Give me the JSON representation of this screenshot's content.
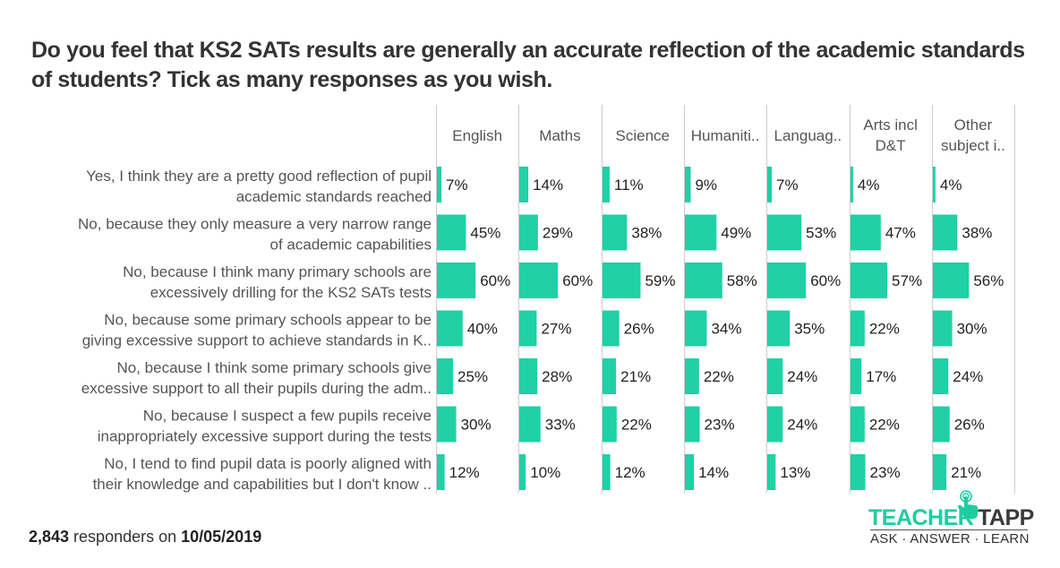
{
  "title": "Do you feel that KS2 SATs results are generally an accurate reflection of the academic standards of students? Tick as many responses as you wish.",
  "footer": {
    "count": "2,843",
    "middle": " responders on ",
    "date": "10/05/2019"
  },
  "logo": {
    "word1": "TEACHER",
    "word2": "TAPP",
    "tagline": "ASK · ANSWER · LEARN",
    "icon": "tapping-hand-icon"
  },
  "colors": {
    "bar": "#1fd1a5",
    "text": "#333333",
    "label": "#555555",
    "divider": "#cccccc"
  },
  "chart_data": {
    "type": "bar",
    "orientation": "horizontal",
    "layout": "small-multiples",
    "title": "Do you feel that KS2 SATs results are generally an accurate reflection of the academic standards of students? Tick as many responses as you wish.",
    "xlabel": "",
    "ylabel": "",
    "xlim": [
      0,
      100
    ],
    "unit": "%",
    "grid": false,
    "legend": "none",
    "columns": [
      [
        "English"
      ],
      [
        "Maths"
      ],
      [
        "Science"
      ],
      [
        "Humaniti.."
      ],
      [
        "Languag.."
      ],
      [
        "Arts incl",
        "D&T"
      ],
      [
        "Other",
        "subject i.."
      ]
    ],
    "categories": [
      [
        "Yes, I think they are a pretty good reflection of pupil",
        "academic standards reached"
      ],
      [
        "No, because they only measure a very narrow range",
        "of academic capabilities"
      ],
      [
        "No, because I think many primary schools are",
        "excessively drilling for the KS2 SATs tests"
      ],
      [
        "No, because some primary schools appear to be",
        "giving excessive support to achieve standards in K.."
      ],
      [
        "No, because I think some primary schools give",
        "excessive support to all their pupils during the adm.."
      ],
      [
        "No, because I suspect a few pupils receive",
        "inappropriately excessive support during the tests"
      ],
      [
        "No, I tend to find pupil data is poorly aligned with",
        "their knowledge and capabilities but I don't know .."
      ]
    ],
    "series": [
      {
        "name": "English",
        "values": [
          7,
          45,
          60,
          40,
          25,
          30,
          12
        ]
      },
      {
        "name": "Maths",
        "values": [
          14,
          29,
          60,
          27,
          28,
          33,
          10
        ]
      },
      {
        "name": "Science",
        "values": [
          11,
          38,
          59,
          26,
          21,
          22,
          12
        ]
      },
      {
        "name": "Humanities",
        "values": [
          9,
          49,
          58,
          34,
          22,
          23,
          14
        ]
      },
      {
        "name": "Languages",
        "values": [
          7,
          53,
          60,
          35,
          24,
          24,
          13
        ]
      },
      {
        "name": "Arts incl D&T",
        "values": [
          4,
          47,
          57,
          22,
          17,
          22,
          23
        ]
      },
      {
        "name": "Other subject",
        "values": [
          4,
          38,
          56,
          30,
          24,
          26,
          21
        ]
      }
    ]
  }
}
